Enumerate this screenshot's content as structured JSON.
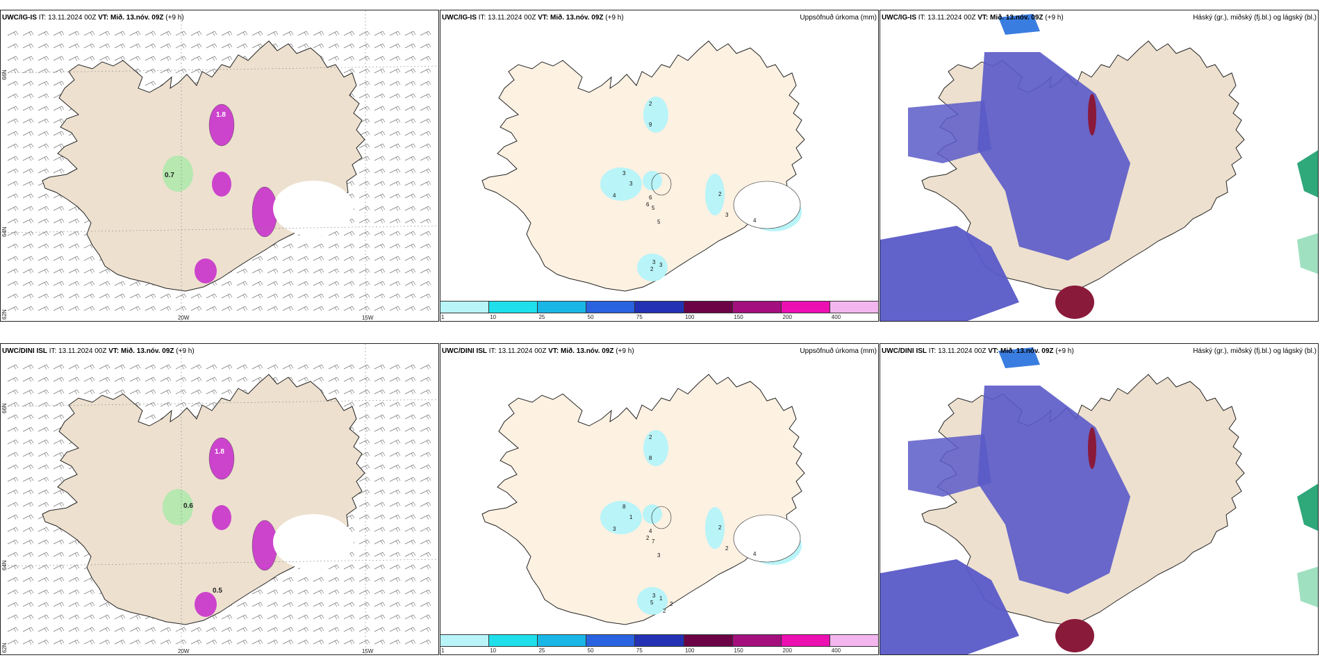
{
  "rows": [
    {
      "model": "UWC/IG-IS",
      "it_label": "IT:",
      "it": "13.11.2024 00Z",
      "vt_label": "VT:",
      "vt": "Mið. 13.nóv. 09Z",
      "lead": "(+9 h)",
      "wind_labels": [
        "1.8",
        "0.7"
      ],
      "precip_labels": [
        "2",
        "9",
        "3",
        "3",
        "4",
        "6",
        "5",
        "3",
        "3",
        "2",
        "3",
        "4",
        "6",
        "5",
        "2"
      ],
      "lon_labels": [
        "20W",
        "15W"
      ],
      "lat_labels": [
        "66N",
        "64N",
        "62N"
      ]
    },
    {
      "model": "UWC/DINI ISL",
      "it_label": "IT:",
      "it": "13.11.2024 00Z",
      "vt_label": "VT:",
      "vt": "Mið. 13.nóv. 09Z",
      "lead": "(+9 h)",
      "wind_labels": [
        "1.8",
        "0.6",
        "0.5"
      ],
      "precip_labels": [
        "2",
        "8",
        "8",
        "1",
        "3",
        "4",
        "7",
        "3",
        "1",
        "2",
        "2",
        "4",
        "2",
        "3",
        "5",
        "2",
        "2"
      ],
      "lon_labels": [
        "20W",
        "15W"
      ],
      "lat_labels": [
        "66N",
        "64N",
        "62N"
      ]
    }
  ],
  "precip_title": "Uppsöfnuð úrkoma (mm)",
  "cloud_title": "Háský (gr.), miðský (fj.bl.) og lágský (bl.)",
  "colorbar": {
    "ticks": [
      "1",
      "10",
      "25",
      "50",
      "75",
      "100",
      "150",
      "200",
      "400"
    ],
    "colors": [
      "#b8f4f8",
      "#1fe0ea",
      "#19b7e6",
      "#2a63e0",
      "#2331b4",
      "#6b0346",
      "#a3107e",
      "#ec0fb2",
      "#f4b6ee"
    ]
  },
  "colors": {
    "land": "#ede0cf",
    "land_precip": "#fdf1e2",
    "cloud_high": "#5a5ac8",
    "cloud_mid": "#3a7de0",
    "cloud_low": "#8a1a3a",
    "coast": "#222222",
    "green": "#b6e8b0",
    "magenta": "#cc44cc"
  }
}
